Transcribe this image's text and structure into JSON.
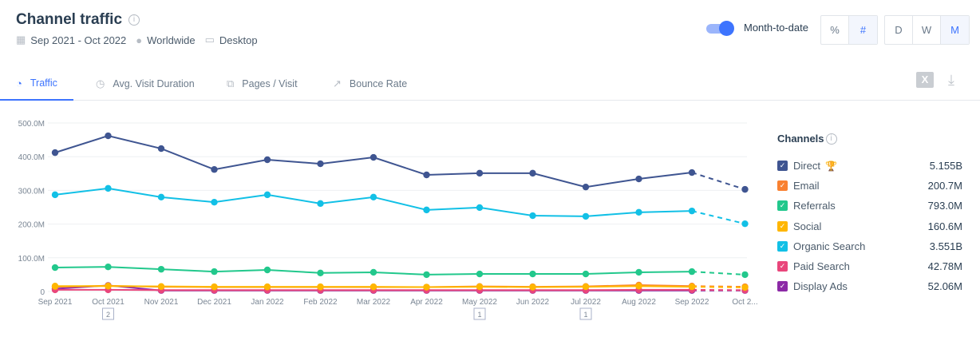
{
  "header": {
    "title": "Channel traffic",
    "date_range": "Sep 2021 - Oct 2022",
    "region": "Worldwide",
    "device": "Desktop"
  },
  "controls": {
    "toggle_label": "Month-to-date",
    "toggle_on": true,
    "metric_buttons": [
      {
        "label": "%",
        "active": false
      },
      {
        "label": "#",
        "active": true
      }
    ],
    "granularity_buttons": [
      {
        "label": "D",
        "active": false
      },
      {
        "label": "W",
        "active": false
      },
      {
        "label": "M",
        "active": true
      }
    ]
  },
  "tabs": [
    {
      "label": "Traffic",
      "icon": "pie-chart-icon",
      "active": true
    },
    {
      "label": "Avg. Visit Duration",
      "icon": "stopwatch-icon"
    },
    {
      "label": "Pages / Visit",
      "icon": "pages-icon"
    },
    {
      "label": "Bounce Rate",
      "icon": "trend-icon"
    }
  ],
  "actions": {
    "excel": "excel-export-icon",
    "download": "download-icon"
  },
  "legend": {
    "title": "Channels",
    "items": [
      {
        "name": "Direct",
        "total": "5.155B",
        "color": "#3f5591",
        "trophy": true
      },
      {
        "name": "Email",
        "total": "200.7M",
        "color": "#f98131"
      },
      {
        "name": "Referrals",
        "total": "793.0M",
        "color": "#22c88c"
      },
      {
        "name": "Social",
        "total": "160.6M",
        "color": "#ffb600"
      },
      {
        "name": "Organic Search",
        "total": "3.551B",
        "color": "#12c0e6"
      },
      {
        "name": "Paid Search",
        "total": "42.78M",
        "color": "#e9467b"
      },
      {
        "name": "Display Ads",
        "total": "52.06M",
        "color": "#8c2aa6"
      }
    ]
  },
  "chart_data": {
    "type": "line",
    "categories": [
      "Sep 2021",
      "Oct 2021",
      "Nov 2021",
      "Dec 2021",
      "Jan 2022",
      "Feb 2022",
      "Mar 2022",
      "Apr 2022",
      "May 2022",
      "Jun 2022",
      "Jul 2022",
      "Aug 2022",
      "Sep 2022",
      "Oct 2..."
    ],
    "y_ticks": [
      "0",
      "100.0M",
      "200.0M",
      "300.0M",
      "400.0M",
      "500.0M"
    ],
    "ylim": [
      0,
      500
    ],
    "y_unit": "M",
    "last_point_projected": true,
    "annotations": [
      {
        "category": "Oct 2021",
        "label": "2"
      },
      {
        "category": "May 2022",
        "label": "1"
      },
      {
        "category": "Jul 2022",
        "label": "1"
      }
    ],
    "series": [
      {
        "name": "Direct",
        "color": "#3f5591",
        "values": [
          412,
          462,
          424,
          362,
          391,
          379,
          398,
          346,
          351,
          351,
          310,
          334,
          353,
          303
        ]
      },
      {
        "name": "Organic Search",
        "color": "#12c0e6",
        "values": [
          287,
          306,
          280,
          265,
          287,
          261,
          280,
          242,
          249,
          225,
          223,
          235,
          239,
          201
        ]
      },
      {
        "name": "Referrals",
        "color": "#22c88c",
        "values": [
          71,
          73,
          66,
          59,
          64,
          55,
          57,
          50,
          52,
          52,
          52,
          57,
          59,
          50
        ]
      },
      {
        "name": "Social",
        "color": "#ffb600",
        "values": [
          16,
          16,
          15,
          14,
          14,
          14,
          14,
          13,
          14,
          13,
          14,
          16,
          14,
          12
        ]
      },
      {
        "name": "Email",
        "color": "#f98131",
        "values": [
          14,
          17,
          14,
          13,
          13,
          13,
          13,
          13,
          15,
          14,
          15,
          19,
          16,
          14
        ]
      },
      {
        "name": "Paid Search",
        "color": "#e9467b",
        "values": [
          5,
          5,
          4,
          4,
          4,
          4,
          4,
          4,
          4,
          4,
          4,
          5,
          5,
          4
        ]
      },
      {
        "name": "Display Ads",
        "color": "#8c2aa6",
        "values": [
          8,
          18,
          3,
          3,
          3,
          3,
          3,
          3,
          3,
          3,
          3,
          3,
          3,
          3
        ]
      }
    ]
  }
}
